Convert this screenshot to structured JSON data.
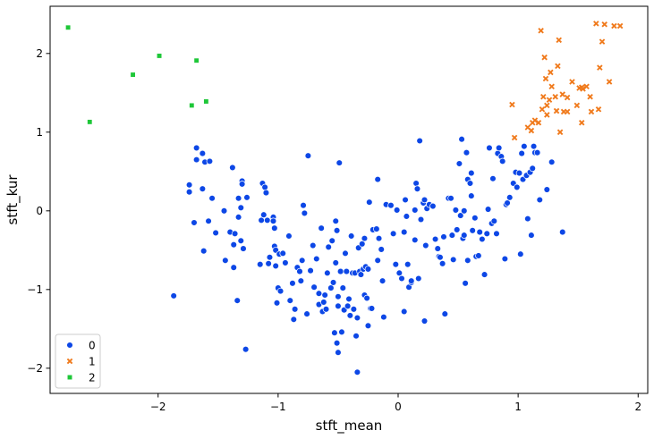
{
  "chart_data": {
    "type": "scatter",
    "title": "",
    "xlabel": "stft_mean",
    "ylabel": "stft_kur",
    "xlim": [
      -2.9,
      2.08
    ],
    "ylim": [
      -2.32,
      2.6
    ],
    "xticks": [
      "−2",
      "−1",
      "0",
      "1",
      "2"
    ],
    "xtick_values": [
      -2,
      -1,
      0,
      1,
      2
    ],
    "yticks": [
      "−2",
      "−1",
      "0",
      "1",
      "2"
    ],
    "ytick_values": [
      -2,
      -1,
      0,
      1,
      2
    ],
    "grid": false,
    "legend_position": "bottom-left",
    "series": [
      {
        "name": "0",
        "marker": "circle",
        "color": "#0d47e6",
        "points": [
          [
            -1.87,
            -1.08
          ],
          [
            -1.74,
            0.33
          ],
          [
            -1.74,
            0.24
          ],
          [
            -1.7,
            -0.15
          ],
          [
            -1.68,
            0.8
          ],
          [
            -1.68,
            0.65
          ],
          [
            -1.63,
            0.73
          ],
          [
            -1.63,
            0.28
          ],
          [
            -1.62,
            -0.51
          ],
          [
            -1.61,
            0.62
          ],
          [
            -1.58,
            -0.13
          ],
          [
            -1.57,
            0.63
          ],
          [
            -1.55,
            0.16
          ],
          [
            -1.52,
            -0.28
          ],
          [
            -1.45,
            0.0
          ],
          [
            -1.44,
            -0.63
          ],
          [
            -1.4,
            -0.27
          ],
          [
            -1.38,
            0.55
          ],
          [
            -1.37,
            -0.43
          ],
          [
            -1.37,
            -0.72
          ],
          [
            -1.36,
            -0.29
          ],
          [
            -1.34,
            -1.14
          ],
          [
            -1.33,
            0.16
          ],
          [
            -1.33,
            -0.08
          ],
          [
            -1.31,
            -0.38
          ],
          [
            -1.31,
            0.04
          ],
          [
            -1.3,
            0.38
          ],
          [
            -1.3,
            0.34
          ],
          [
            -1.29,
            -0.48
          ],
          [
            -1.27,
            -1.76
          ],
          [
            -1.26,
            0.17
          ],
          [
            -1.15,
            -0.68
          ],
          [
            -1.14,
            -0.12
          ],
          [
            -1.13,
            0.35
          ],
          [
            -1.12,
            -0.05
          ],
          [
            -1.11,
            0.3
          ],
          [
            -1.1,
            0.23
          ],
          [
            -1.09,
            -0.12
          ],
          [
            -1.08,
            -0.67
          ],
          [
            -1.07,
            -0.59
          ],
          [
            -1.04,
            -0.08
          ],
          [
            -1.04,
            -0.13
          ],
          [
            -1.03,
            -0.22
          ],
          [
            -1.03,
            -0.45
          ],
          [
            -1.02,
            -0.5
          ],
          [
            -1.02,
            -0.7
          ],
          [
            -1.01,
            -1.17
          ],
          [
            -1.0,
            -0.98
          ],
          [
            -0.99,
            -0.55
          ],
          [
            -0.98,
            -1.02
          ],
          [
            -0.96,
            -0.54
          ],
          [
            -0.94,
            -0.66
          ],
          [
            -0.91,
            -0.32
          ],
          [
            -0.9,
            -1.14
          ],
          [
            -0.88,
            -0.92
          ],
          [
            -0.87,
            -1.38
          ],
          [
            -0.86,
            -1.25
          ],
          [
            -0.84,
            -0.72
          ],
          [
            -0.82,
            -0.77
          ],
          [
            -0.81,
            -0.89
          ],
          [
            -0.8,
            -0.63
          ],
          [
            -0.79,
            0.07
          ],
          [
            -0.78,
            -0.03
          ],
          [
            -0.76,
            -1.31
          ],
          [
            -0.75,
            0.7
          ],
          [
            -0.73,
            -0.76
          ],
          [
            -0.71,
            -0.44
          ],
          [
            -0.7,
            -0.97
          ],
          [
            -0.68,
            -0.61
          ],
          [
            -0.66,
            -1.05
          ],
          [
            -0.66,
            -1.19
          ],
          [
            -0.64,
            -0.22
          ],
          [
            -0.63,
            -1.28
          ],
          [
            -0.62,
            -1.16
          ],
          [
            -0.61,
            -1.07
          ],
          [
            -0.6,
            -1.25
          ],
          [
            -0.59,
            -0.79
          ],
          [
            -0.58,
            -0.46
          ],
          [
            -0.56,
            -0.98
          ],
          [
            -0.55,
            -0.38
          ],
          [
            -0.54,
            -0.91
          ],
          [
            -0.53,
            -1.55
          ],
          [
            -0.52,
            -0.13
          ],
          [
            -0.52,
            -0.66
          ],
          [
            -0.51,
            -1.68
          ],
          [
            -0.51,
            -0.25
          ],
          [
            -0.5,
            -1.8
          ],
          [
            -0.5,
            -1.21
          ],
          [
            -0.5,
            -1.09
          ],
          [
            -0.49,
            0.61
          ],
          [
            -0.48,
            -0.77
          ],
          [
            -0.47,
            -1.54
          ],
          [
            -0.46,
            -0.98
          ],
          [
            -0.45,
            -1.26
          ],
          [
            -0.44,
            -0.54
          ],
          [
            -0.43,
            -0.77
          ],
          [
            -0.42,
            -1.21
          ],
          [
            -0.41,
            -1.12
          ],
          [
            -0.4,
            -1.33
          ],
          [
            -0.39,
            -0.32
          ],
          [
            -0.38,
            -0.79
          ],
          [
            -0.37,
            -1.25
          ],
          [
            -0.36,
            -0.79
          ],
          [
            -0.35,
            -1.59
          ],
          [
            -0.34,
            -2.05
          ],
          [
            -0.34,
            -1.36
          ],
          [
            -0.33,
            -0.47
          ],
          [
            -0.32,
            -0.77
          ],
          [
            -0.31,
            -0.81
          ],
          [
            -0.3,
            -0.42
          ],
          [
            -0.29,
            -0.74
          ],
          [
            -0.28,
            -0.35
          ],
          [
            -0.28,
            -1.07
          ],
          [
            -0.27,
            -0.71
          ],
          [
            -0.26,
            -1.11
          ],
          [
            -0.25,
            -0.74
          ],
          [
            -0.25,
            -1.46
          ],
          [
            -0.24,
            0.11
          ],
          [
            -0.23,
            -1.24
          ],
          [
            -0.22,
            -1.24
          ],
          [
            -0.21,
            -0.24
          ],
          [
            -0.18,
            -0.23
          ],
          [
            -0.17,
            0.4
          ],
          [
            -0.17,
            -0.63
          ],
          [
            -0.16,
            -0.35
          ],
          [
            -0.14,
            -0.49
          ],
          [
            -0.13,
            -0.89
          ],
          [
            -0.12,
            -1.35
          ],
          [
            -0.1,
            0.08
          ],
          [
            -0.06,
            0.07
          ],
          [
            -0.04,
            -0.29
          ],
          [
            -0.02,
            -0.68
          ],
          [
            -0.01,
            0.01
          ],
          [
            0.01,
            -0.79
          ],
          [
            0.03,
            -0.86
          ],
          [
            0.05,
            -0.27
          ],
          [
            0.05,
            -1.28
          ],
          [
            0.06,
            0.14
          ],
          [
            0.07,
            -0.07
          ],
          [
            0.08,
            -0.68
          ],
          [
            0.09,
            -0.97
          ],
          [
            0.11,
            -0.91
          ],
          [
            0.11,
            -0.89
          ],
          [
            0.14,
            0.01
          ],
          [
            0.14,
            -0.37
          ],
          [
            0.15,
            0.35
          ],
          [
            0.16,
            0.28
          ],
          [
            0.17,
            -0.86
          ],
          [
            0.18,
            0.89
          ],
          [
            0.19,
            -0.11
          ],
          [
            0.21,
            0.1
          ],
          [
            0.22,
            0.14
          ],
          [
            0.22,
            -1.4
          ],
          [
            0.23,
            -0.44
          ],
          [
            0.24,
            0.03
          ],
          [
            0.26,
            0.08
          ],
          [
            0.29,
            0.06
          ],
          [
            0.31,
            -0.36
          ],
          [
            0.33,
            -0.48
          ],
          [
            0.34,
            -0.58
          ],
          [
            0.35,
            -0.59
          ],
          [
            0.37,
            -0.67
          ],
          [
            0.38,
            -0.33
          ],
          [
            0.39,
            -1.31
          ],
          [
            0.42,
            0.16
          ],
          [
            0.44,
            0.16
          ],
          [
            0.45,
            -0.31
          ],
          [
            0.46,
            -0.62
          ],
          [
            0.48,
            0.01
          ],
          [
            0.49,
            -0.24
          ],
          [
            0.51,
            0.6
          ],
          [
            0.52,
            -0.06
          ],
          [
            0.53,
            0.91
          ],
          [
            0.54,
            -0.35
          ],
          [
            0.55,
            -0.31
          ],
          [
            0.55,
            0.0
          ],
          [
            0.56,
            -0.92
          ],
          [
            0.57,
            0.74
          ],
          [
            0.58,
            -0.63
          ],
          [
            0.58,
            0.4
          ],
          [
            0.6,
            0.35
          ],
          [
            0.61,
            0.48
          ],
          [
            0.61,
            0.19
          ],
          [
            0.62,
            -0.25
          ],
          [
            0.64,
            -0.09
          ],
          [
            0.65,
            -0.58
          ],
          [
            0.67,
            -0.57
          ],
          [
            0.68,
            -0.27
          ],
          [
            0.7,
            -0.36
          ],
          [
            0.72,
            -0.81
          ],
          [
            0.74,
            -0.29
          ],
          [
            0.75,
            0.02
          ],
          [
            0.76,
            0.8
          ],
          [
            0.78,
            -0.16
          ],
          [
            0.79,
            0.41
          ],
          [
            0.8,
            -0.13
          ],
          [
            0.82,
            -0.29
          ],
          [
            0.83,
            0.73
          ],
          [
            0.84,
            0.8
          ],
          [
            0.86,
            0.69
          ],
          [
            0.87,
            0.63
          ],
          [
            0.89,
            -0.61
          ],
          [
            0.9,
            0.08
          ],
          [
            0.91,
            0.1
          ],
          [
            0.93,
            0.17
          ],
          [
            0.96,
            0.35
          ],
          [
            0.98,
            0.49
          ],
          [
            0.99,
            0.3
          ],
          [
            1.01,
            0.48
          ],
          [
            1.02,
            -0.55
          ],
          [
            1.03,
            0.73
          ],
          [
            1.04,
            0.4
          ],
          [
            1.05,
            0.82
          ],
          [
            1.07,
            0.45
          ],
          [
            1.08,
            -0.1
          ],
          [
            1.1,
            0.49
          ],
          [
            1.11,
            -0.31
          ],
          [
            1.12,
            0.54
          ],
          [
            1.13,
            0.82
          ],
          [
            1.14,
            0.74
          ],
          [
            1.16,
            0.74
          ],
          [
            1.18,
            0.14
          ],
          [
            1.24,
            0.27
          ],
          [
            1.28,
            0.62
          ],
          [
            1.37,
            -0.27
          ]
        ]
      },
      {
        "name": "1",
        "marker": "x",
        "color": "#f07a1c",
        "points": [
          [
            0.95,
            1.35
          ],
          [
            0.97,
            0.93
          ],
          [
            1.08,
            1.06
          ],
          [
            1.11,
            1.02
          ],
          [
            1.12,
            1.12
          ],
          [
            1.14,
            1.15
          ],
          [
            1.17,
            1.12
          ],
          [
            1.19,
            2.29
          ],
          [
            1.2,
            1.29
          ],
          [
            1.21,
            1.45
          ],
          [
            1.22,
            1.95
          ],
          [
            1.23,
            1.68
          ],
          [
            1.24,
            1.34
          ],
          [
            1.24,
            1.22
          ],
          [
            1.26,
            1.41
          ],
          [
            1.27,
            1.76
          ],
          [
            1.28,
            1.58
          ],
          [
            1.31,
            1.45
          ],
          [
            1.32,
            1.27
          ],
          [
            1.33,
            1.84
          ],
          [
            1.34,
            2.17
          ],
          [
            1.35,
            1.0
          ],
          [
            1.37,
            1.48
          ],
          [
            1.38,
            1.26
          ],
          [
            1.41,
            1.44
          ],
          [
            1.41,
            1.26
          ],
          [
            1.45,
            1.64
          ],
          [
            1.49,
            1.34
          ],
          [
            1.51,
            1.56
          ],
          [
            1.53,
            1.12
          ],
          [
            1.53,
            1.57
          ],
          [
            1.54,
            1.55
          ],
          [
            1.57,
            1.58
          ],
          [
            1.6,
            1.45
          ],
          [
            1.61,
            1.26
          ],
          [
            1.65,
            2.38
          ],
          [
            1.67,
            1.29
          ],
          [
            1.68,
            1.82
          ],
          [
            1.7,
            2.15
          ],
          [
            1.72,
            2.37
          ],
          [
            1.76,
            1.64
          ],
          [
            1.8,
            2.35
          ],
          [
            1.85,
            2.35
          ]
        ]
      },
      {
        "name": "2",
        "marker": "square",
        "color": "#1ec738",
        "points": [
          [
            -2.75,
            2.33
          ],
          [
            -2.57,
            1.13
          ],
          [
            -2.21,
            1.73
          ],
          [
            -1.99,
            1.97
          ],
          [
            -1.72,
            1.34
          ],
          [
            -1.68,
            1.91
          ],
          [
            -1.6,
            1.39
          ]
        ]
      }
    ]
  }
}
